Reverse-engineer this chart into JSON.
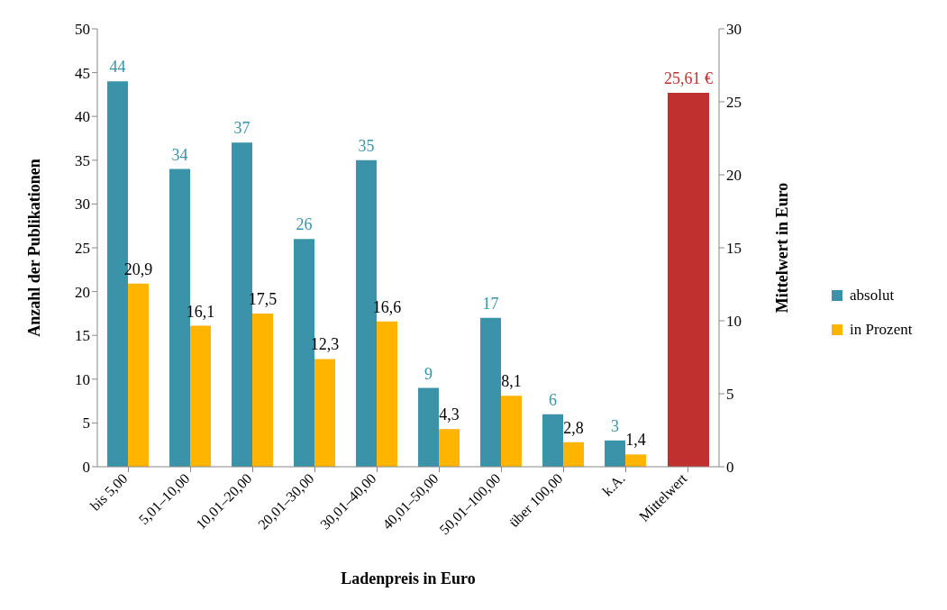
{
  "chart_data": {
    "type": "bar",
    "xlabel": "Ladenpreis in Euro",
    "ylabel": "Anzahl der Publikationen",
    "y2label": "Mittelwert in Euro",
    "categories": [
      "bis 5,00",
      "5,01–10,00",
      "10,01–20,00",
      "20,01–30,00",
      "30,01–40,00",
      "40,01–50,00",
      "50,01–100,00",
      "über 100,00",
      "k.A.",
      "Mittelwert"
    ],
    "series": [
      {
        "name": "absolut",
        "color": "#3a93a8",
        "values": [
          44,
          34,
          37,
          26,
          35,
          9,
          17,
          6,
          3,
          null
        ],
        "value_labels": [
          "44",
          "34",
          "37",
          "26",
          "35",
          "9",
          "17",
          "6",
          "3",
          null
        ]
      },
      {
        "name": "in Prozent",
        "color": "#ffb400",
        "values": [
          20.9,
          16.1,
          17.5,
          12.3,
          16.6,
          4.3,
          8.1,
          2.8,
          1.4,
          null
        ],
        "value_labels": [
          "20,9",
          "16,1",
          "17,5",
          "12,3",
          "16,6",
          "4,3",
          "8,1",
          "2,8",
          "1,4",
          null
        ]
      },
      {
        "color": "#c0302f",
        "axis": "y2",
        "values": [
          null,
          null,
          null,
          null,
          null,
          null,
          null,
          null,
          null,
          25.61
        ],
        "value_labels": [
          null,
          null,
          null,
          null,
          null,
          null,
          null,
          null,
          null,
          "25,61 €"
        ]
      }
    ],
    "ylim": [
      0,
      50
    ],
    "yticks": [
      0,
      5,
      10,
      15,
      20,
      25,
      30,
      35,
      40,
      45,
      50
    ],
    "y2lim": [
      0,
      30
    ],
    "y2ticks": [
      0,
      5,
      10,
      15,
      20,
      25,
      30
    ],
    "legend": "right"
  }
}
